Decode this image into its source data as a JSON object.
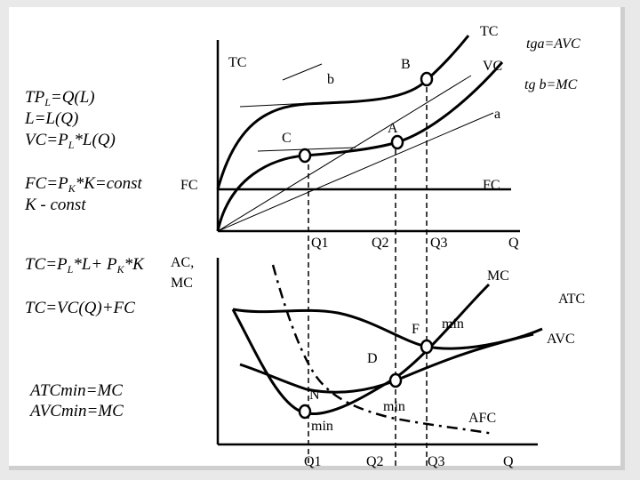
{
  "formulas": {
    "tpl": {
      "a": "TP",
      "sub": "L",
      "b": "=Q(L)"
    },
    "l": "L=L(Q)",
    "vc": {
      "a": "VC=P",
      "sub": "L",
      "b": "*L(Q)"
    },
    "fc": {
      "a": "FC=P",
      "sub": "K",
      "b": "*K=const"
    },
    "k": "K - const",
    "tc1": {
      "a": "TC=P",
      "sub1": "L",
      "b": "*L+ P",
      "sub2": "K",
      "c": "*K"
    },
    "tc2": "TC=VC(Q)+FC",
    "atc": "ATCmin=MC",
    "avc": "AVCmin=MC"
  },
  "top_graph": {
    "tc_top": "TC",
    "tc_axis": "TC",
    "tga": "tga=AVC",
    "vc": "VC",
    "tgb": "tg b=MC",
    "B": "B",
    "b": "b",
    "a": "a",
    "A": "A",
    "C": "C",
    "fc_left": "FC",
    "fc_right": "FC",
    "q1": "Q1",
    "q2": "Q2",
    "q3": "Q3",
    "q": "Q"
  },
  "bottom_graph": {
    "y_axis_1": "AC,",
    "y_axis_2": "MC",
    "mc": "MC",
    "atc": "ATC",
    "avc": "AVC",
    "F": "F",
    "min_atc": "min",
    "D": "D",
    "N": "N",
    "min_avc": "min",
    "min_mc": "min",
    "afc": "AFC",
    "q1": "Q1",
    "q2": "Q2",
    "q3": "Q3",
    "q": "Q"
  }
}
